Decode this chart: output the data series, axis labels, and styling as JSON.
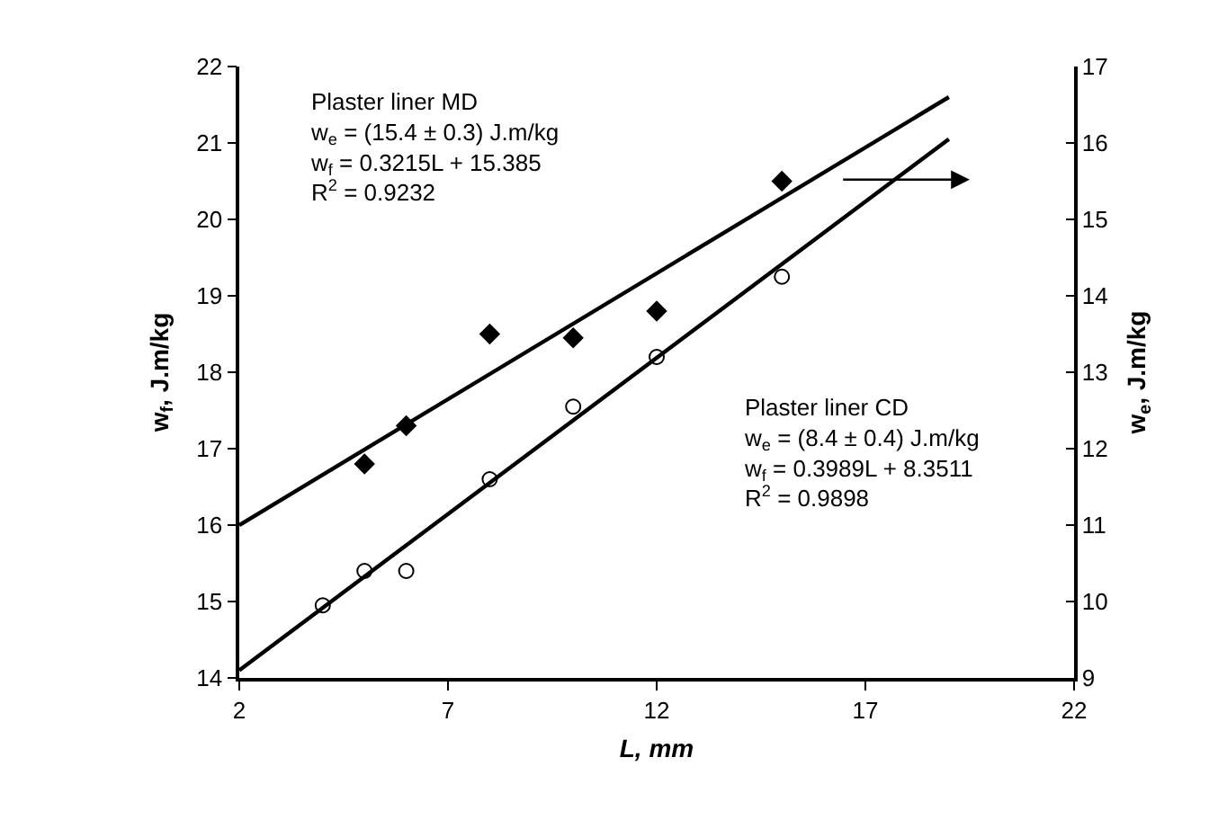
{
  "chart_data": {
    "type": "scatter",
    "xlabel": "L, mm",
    "ylabel": "w$_{f}$, J.m/kg",
    "y2label": "w$_{e}$, J.m/kg",
    "xlim": [
      2,
      22
    ],
    "xticks": [
      2,
      7,
      12,
      17,
      22
    ],
    "ylim": [
      14,
      22
    ],
    "yticks": [
      14,
      15,
      16,
      17,
      18,
      19,
      20,
      21,
      22
    ],
    "y2lim": [
      9,
      17
    ],
    "y2ticks": [
      9,
      10,
      11,
      12,
      13,
      14,
      15,
      16,
      17
    ],
    "grid": false,
    "series": [
      {
        "marker": "diamond",
        "color": "#000000",
        "x": [
          5,
          6,
          8,
          10,
          12,
          15
        ],
        "values": [
          16.8,
          17.3,
          18.5,
          18.45,
          18.8,
          20.5
        ]
      },
      {
        "marker": "circle",
        "color": "#000000",
        "x": [
          4,
          5,
          6,
          8,
          10,
          12,
          15
        ],
        "values": [
          14.95,
          15.4,
          15.4,
          16.6,
          17.55,
          18.2,
          19.25
        ]
      },
      {
        "type": "line",
        "marker": "none",
        "line_style": "solid",
        "color": "#000000",
        "x": [
          2,
          19
        ],
        "values": [
          16.0,
          21.6
        ]
      },
      {
        "type": "line",
        "marker": "none",
        "line_style": "solid",
        "color": "#000000",
        "x": [
          2,
          19
        ],
        "values": [
          14.1,
          21.05
        ]
      }
    ],
    "annotations": [
      "Plaster liner MD\nw$_{e}$ = (15.4 ± 0.3) J.m/kg\nw$_{f}$ = 0.3215L + 15.385\nR$^{2}$ = 0.9232",
      "Plaster liner CD\nw$_{e}$ = (8.4 ± 0.4) J.m/kg\nw$_{f}$ = 0.3989L + 8.3511\nR$^{2}$ = 0.9898"
    ]
  }
}
